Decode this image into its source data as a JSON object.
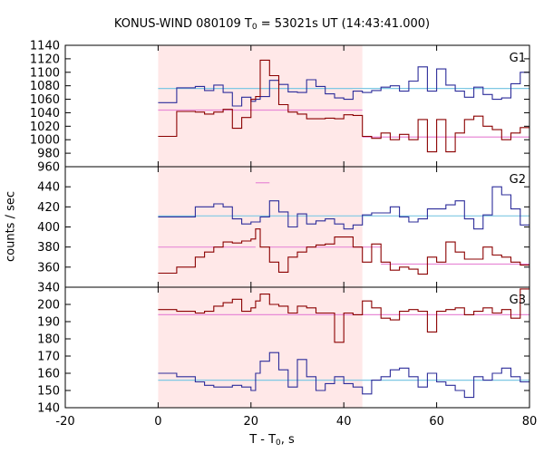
{
  "chart_data": {
    "type": "line",
    "title": {
      "prefix": "KONUS-WIND 080109 T",
      "sub": "0",
      "suffix": " = 53021s UT (14:43:41.000)"
    },
    "xlabel": {
      "prefix": "T - T",
      "sub": "0",
      "suffix": ", s"
    },
    "ylabel": "counts / sec",
    "xlim": [
      -20,
      80
    ],
    "xticks": [
      -20,
      0,
      20,
      40,
      60,
      80
    ],
    "shaded_interval": [
      0,
      44
    ],
    "shade_color": "#ffe8e8",
    "colors": {
      "blue": "#2c2c9a",
      "red": "#8b0000",
      "bg_blue": "#7ec8e3",
      "bg_pink": "#e88ad6"
    },
    "panels": [
      {
        "label": "G1",
        "ylim": [
          960,
          1140
        ],
        "yticks": [
          960,
          980,
          1000,
          1020,
          1040,
          1060,
          1080,
          1100,
          1120,
          1140
        ],
        "x": [
          0,
          4,
          8,
          10,
          12,
          14,
          16,
          18,
          20,
          21,
          22,
          24,
          26,
          28,
          30,
          32,
          34,
          36,
          38,
          40,
          42,
          44,
          46,
          48,
          50,
          52,
          54,
          56,
          58,
          60,
          62,
          64,
          66,
          68,
          70,
          72,
          74,
          76,
          78,
          80
        ],
        "series": [
          {
            "name": "blue",
            "color_key": "blue",
            "values": [
              1055,
              1077,
              1079,
              1073,
              1081,
              1070,
              1050,
              1063,
              1057,
              1060,
              1064,
              1088,
              1082,
              1071,
              1070,
              1089,
              1079,
              1068,
              1062,
              1060,
              1072,
              1070,
              1073,
              1078,
              1080,
              1072,
              1087,
              1108,
              1072,
              1105,
              1081,
              1072,
              1063,
              1078,
              1067,
              1060,
              1062,
              1083,
              1100,
              1100
            ]
          },
          {
            "name": "red",
            "color_key": "red",
            "values": [
              1005,
              1042,
              1041,
              1038,
              1041,
              1045,
              1017,
              1033,
              1060,
              1064,
              1118,
              1095,
              1052,
              1041,
              1038,
              1031,
              1031,
              1032,
              1031,
              1037,
              1036,
              1005,
              1002,
              1010,
              1000,
              1008,
              1000,
              1030,
              982,
              1030,
              982,
              1010,
              1030,
              1035,
              1020,
              1015,
              1000,
              1010,
              1018,
              1018
            ]
          }
        ],
        "backgrounds": [
          {
            "name": "blue",
            "color_key": "bg_blue",
            "segments": [
              [
                0,
                80,
                1076
              ]
            ]
          },
          {
            "name": "pink",
            "color_key": "bg_pink",
            "segments": [
              [
                0,
                44,
                1044
              ],
              [
                44,
                80,
                1004
              ]
            ]
          }
        ]
      },
      {
        "label": "G2",
        "ylim": [
          340,
          460
        ],
        "yticks": [
          340,
          360,
          380,
          400,
          420,
          440
        ],
        "x": [
          0,
          4,
          8,
          10,
          12,
          14,
          16,
          18,
          20,
          21,
          22,
          24,
          26,
          28,
          30,
          32,
          34,
          36,
          38,
          40,
          42,
          44,
          46,
          48,
          50,
          52,
          54,
          56,
          58,
          60,
          62,
          64,
          66,
          68,
          70,
          72,
          74,
          76,
          78,
          80
        ],
        "series": [
          {
            "name": "blue",
            "color_key": "blue",
            "values": [
              410,
              410,
              420,
              420,
              423,
              420,
              408,
              403,
              405,
              405,
              410,
              426,
              415,
              400,
              413,
              403,
              406,
              408,
              403,
              398,
              402,
              412,
              414,
              414,
              420,
              410,
              405,
              408,
              418,
              418,
              422,
              426,
              408,
              398,
              412,
              440,
              432,
              418,
              402,
              402
            ]
          },
          {
            "name": "red",
            "color_key": "red",
            "values": [
              354,
              360,
              370,
              375,
              380,
              385,
              384,
              386,
              388,
              398,
              380,
              365,
              355,
              370,
              375,
              380,
              382,
              383,
              390,
              390,
              380,
              365,
              383,
              365,
              357,
              360,
              358,
              353,
              370,
              365,
              385,
              375,
              368,
              368,
              380,
              372,
              370,
              365,
              362,
              362
            ]
          }
        ],
        "backgrounds": [
          {
            "name": "blue",
            "color_key": "bg_blue",
            "segments": [
              [
                0,
                80,
                411
              ]
            ]
          },
          {
            "name": "pink",
            "color_key": "bg_pink",
            "segments": [
              [
                0,
                21,
                380
              ],
              [
                21,
                24,
                444
              ],
              [
                24,
                48,
                380
              ],
              [
                48,
                80,
                363
              ]
            ]
          }
        ]
      },
      {
        "label": "G3",
        "ylim": [
          140,
          210
        ],
        "yticks": [
          140,
          150,
          160,
          170,
          180,
          190,
          200
        ],
        "x": [
          0,
          4,
          8,
          10,
          12,
          14,
          16,
          18,
          20,
          21,
          22,
          24,
          26,
          28,
          30,
          32,
          34,
          36,
          38,
          40,
          42,
          44,
          46,
          48,
          50,
          52,
          54,
          56,
          58,
          60,
          62,
          64,
          66,
          68,
          70,
          72,
          74,
          76,
          78,
          80
        ],
        "series": [
          {
            "name": "blue",
            "color_key": "blue",
            "values": [
              160,
              158,
              155,
              153,
              152,
              152,
              153,
              152,
              150,
              160,
              167,
              172,
              162,
              152,
              168,
              158,
              150,
              154,
              158,
              154,
              152,
              148,
              156,
              158,
              162,
              163,
              158,
              152,
              160,
              155,
              153,
              150,
              146,
              158,
              156,
              160,
              163,
              158,
              155,
              155
            ]
          },
          {
            "name": "red",
            "color_key": "red",
            "values": [
              197,
              196,
              195,
              196,
              199,
              201,
              203,
              196,
              198,
              202,
              206,
              200,
              199,
              195,
              199,
              198,
              195,
              195,
              178,
              195,
              194,
              202,
              198,
              192,
              191,
              196,
              197,
              196,
              184,
              196,
              197,
              198,
              194,
              196,
              198,
              195,
              197,
              192,
              209,
              209
            ]
          }
        ],
        "backgrounds": [
          {
            "name": "blue",
            "color_key": "bg_blue",
            "segments": [
              [
                0,
                80,
                156
              ]
            ]
          },
          {
            "name": "pink",
            "color_key": "bg_pink",
            "segments": [
              [
                0,
                80,
                194
              ]
            ]
          }
        ]
      }
    ]
  }
}
